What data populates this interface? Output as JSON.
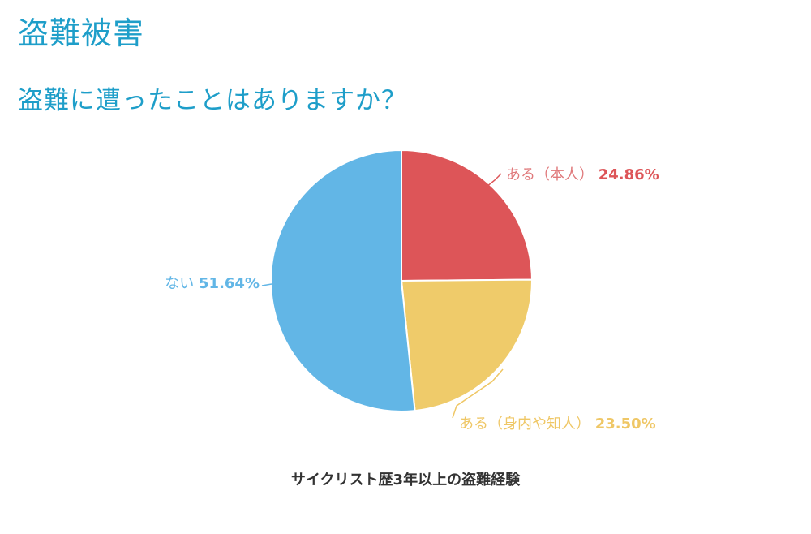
{
  "page": {
    "title": "盗難被害",
    "question": "盗難に遭ったことはありますか？"
  },
  "chart_data": {
    "type": "pie",
    "caption": "サイクリスト歴3年以上の盗難経験",
    "start_angle_deg": 0,
    "direction": "clockwise",
    "slices": [
      {
        "label": "ある（本人）",
        "value_label": "24.86%",
        "value": 24.86,
        "color": "#dd5558",
        "label_color": "#e07a7c",
        "value_color": "#dd5558"
      },
      {
        "label": "ある（身内や知人）",
        "value_label": "23.50%",
        "value": 23.5,
        "color": "#efcb6a",
        "label_color": "#efc766",
        "value_color": "#efc766"
      },
      {
        "label": "ない",
        "value_label": "51.64%",
        "value": 51.64,
        "color": "#62b6e6",
        "label_color": "#62b6e6",
        "value_color": "#62b6e6"
      }
    ]
  }
}
